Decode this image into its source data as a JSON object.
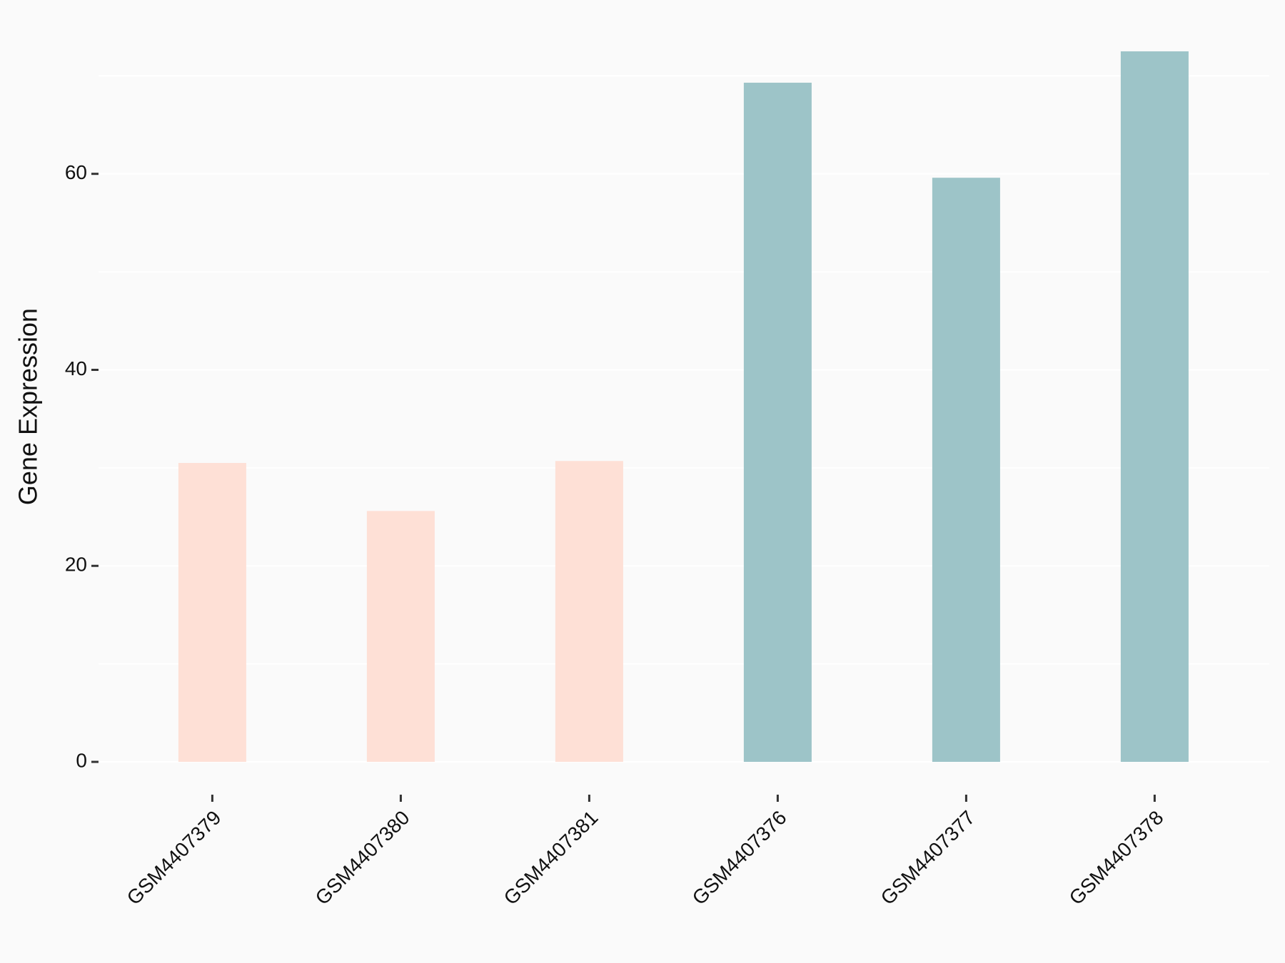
{
  "chart_data": {
    "type": "bar",
    "y_label": "Gene Expression",
    "categories": [
      "GSM4407379",
      "GSM4407380",
      "GSM4407381",
      "GSM4407376",
      "GSM4407377",
      "GSM4407378"
    ],
    "values": [
      30.5,
      25.6,
      30.7,
      69.3,
      59.6,
      72.5
    ],
    "colors": [
      "#fee0d6",
      "#fee0d6",
      "#fee0d6",
      "#9dc4c8",
      "#9dc4c8",
      "#9dc4c8"
    ],
    "ylim": [
      -3.6,
      76.1
    ],
    "yticks": [
      0,
      20,
      40,
      60
    ],
    "minor_yticks": [
      10,
      30,
      50,
      70
    ],
    "grid": true
  }
}
